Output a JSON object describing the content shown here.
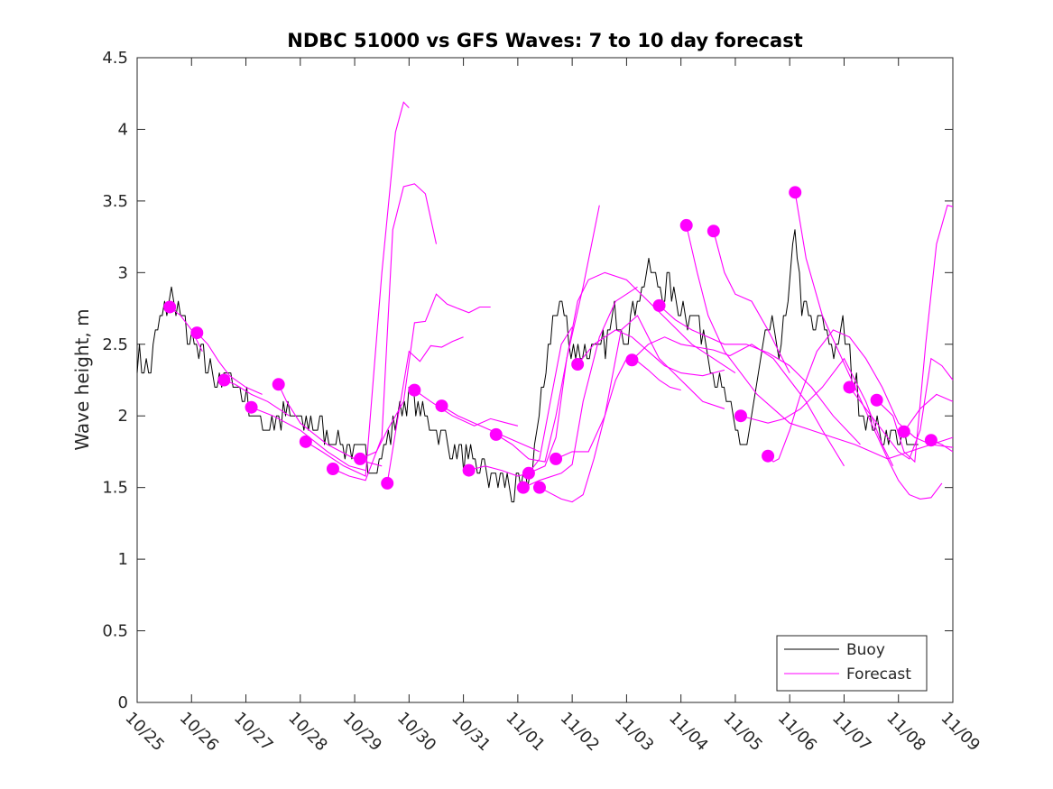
{
  "chart_data": {
    "type": "line",
    "title": "NDBC 51000 vs GFS Waves: 7 to 10 day forecast",
    "xlabel": "",
    "ylabel": "Wave height, m",
    "xlim": [
      0,
      15
    ],
    "ylim": [
      0,
      4.5
    ],
    "x_unit": "days since 10/25",
    "y_ticks": [
      "0",
      "0.5",
      "1",
      "1.5",
      "2",
      "2.5",
      "3",
      "3.5",
      "4",
      "4.5"
    ],
    "y_tick_values": [
      0,
      0.5,
      1,
      1.5,
      2,
      2.5,
      3,
      3.5,
      4,
      4.5
    ],
    "x_ticks": [
      "10/25",
      "10/26",
      "10/27",
      "10/28",
      "10/29",
      "10/30",
      "10/31",
      "11/01",
      "11/02",
      "11/03",
      "11/04",
      "11/05",
      "11/06",
      "11/07",
      "11/08",
      "11/09"
    ],
    "x_tick_values": [
      0,
      1,
      2,
      3,
      4,
      5,
      6,
      7,
      8,
      9,
      10,
      11,
      12,
      13,
      14,
      15
    ],
    "legend": {
      "location": "bottom-right",
      "entries": [
        "Buoy",
        "Forecast"
      ]
    },
    "colors": {
      "buoy": "#000000",
      "forecast": "#ff00ff",
      "axis": "#262626"
    },
    "buoy": {
      "name": "Buoy",
      "anchors": {
        "x": [
          0,
          0.2,
          0.4,
          0.6,
          0.8,
          1.0,
          1.2,
          1.4,
          1.6,
          1.8,
          2.0,
          2.2,
          2.4,
          2.6,
          2.8,
          3.0,
          3.2,
          3.4,
          3.6,
          3.8,
          4.0,
          4.2,
          4.4,
          4.6,
          4.8,
          5.0,
          5.2,
          5.4,
          5.6,
          5.8,
          6.0,
          6.2,
          6.4,
          6.6,
          6.8,
          7.0,
          7.2,
          7.4,
          7.6,
          7.8,
          8.0,
          8.2,
          8.4,
          8.6,
          8.8,
          9.0,
          9.2,
          9.4,
          9.6,
          9.8,
          10.0,
          10.2,
          10.4,
          10.6,
          10.8,
          11.0,
          11.2,
          11.4,
          11.6,
          11.8,
          12.0,
          12.1,
          12.2,
          12.4,
          12.6,
          12.8,
          13.0,
          13.2,
          13.4,
          13.6,
          13.8,
          14.0,
          14.2,
          14.4
        ],
        "y": [
          2.4,
          2.3,
          2.6,
          2.85,
          2.7,
          2.5,
          2.4,
          2.3,
          2.25,
          2.25,
          2.1,
          1.95,
          1.95,
          2.0,
          2.0,
          1.95,
          1.95,
          1.9,
          1.85,
          1.8,
          1.75,
          1.7,
          1.65,
          1.8,
          2.0,
          2.15,
          2.05,
          1.95,
          1.85,
          1.75,
          1.7,
          1.65,
          1.6,
          1.55,
          1.55,
          1.45,
          1.55,
          2.0,
          2.6,
          2.8,
          2.45,
          2.5,
          2.4,
          2.5,
          2.7,
          2.6,
          2.85,
          3.0,
          2.9,
          2.9,
          2.75,
          2.7,
          2.6,
          2.3,
          2.1,
          1.9,
          1.75,
          2.2,
          2.6,
          2.5,
          2.8,
          3.35,
          2.8,
          2.6,
          2.65,
          2.5,
          2.6,
          2.2,
          2.0,
          1.9,
          1.85,
          1.85,
          1.75,
          1.75
        ]
      },
      "noise_amplitude_m": 0.1,
      "time_step_days": 0.042
    },
    "forecasts": [
      {
        "x": [
          0.6,
          0.8,
          1.0,
          1.2
        ],
        "y": [
          2.76,
          2.7,
          2.6,
          2.45
        ]
      },
      {
        "x": [
          1.1,
          1.3,
          1.5,
          1.7,
          2.0,
          2.3
        ],
        "y": [
          2.58,
          2.5,
          2.38,
          2.28,
          2.2,
          2.15
        ]
      },
      {
        "x": [
          1.6,
          1.8,
          2.1,
          2.4,
          2.8
        ],
        "y": [
          2.25,
          2.22,
          2.15,
          2.1,
          2.0
        ]
      },
      {
        "x": [
          2.1,
          2.5,
          3.0,
          3.5,
          3.9,
          4.2
        ],
        "y": [
          2.06,
          2.0,
          1.9,
          1.75,
          1.65,
          1.62
        ]
      },
      {
        "x": [
          2.6,
          2.75,
          3.0,
          3.5,
          4.0,
          4.5
        ],
        "y": [
          2.22,
          2.1,
          1.95,
          1.8,
          1.7,
          1.65
        ]
      },
      {
        "x": [
          3.1,
          3.4,
          3.8,
          4.2,
          4.5,
          4.75,
          4.9,
          5.0
        ],
        "y": [
          1.82,
          1.75,
          1.65,
          1.58,
          3.0,
          3.98,
          4.19,
          4.15
        ]
      },
      {
        "x": [
          3.6,
          3.9,
          4.2,
          4.5,
          4.7,
          4.9,
          5.1,
          5.3,
          5.5
        ],
        "y": [
          1.63,
          1.58,
          1.55,
          1.85,
          3.3,
          3.6,
          3.62,
          3.55,
          3.2
        ]
      },
      {
        "x": [
          4.1,
          4.4,
          4.6,
          4.9,
          5.1,
          5.3,
          5.5,
          5.7,
          5.9,
          6.1,
          6.3,
          6.5
        ],
        "y": [
          1.7,
          1.75,
          1.9,
          2.1,
          2.65,
          2.66,
          2.85,
          2.78,
          2.75,
          2.72,
          2.76,
          2.76
        ]
      },
      {
        "x": [
          4.6,
          4.8,
          5.0,
          5.2,
          5.4,
          5.6,
          5.8,
          6.0
        ],
        "y": [
          1.53,
          2.0,
          2.45,
          2.38,
          2.49,
          2.48,
          2.52,
          2.55
        ]
      },
      {
        "x": [
          5.1,
          5.4,
          5.8,
          6.2,
          6.5,
          6.8,
          7.0
        ],
        "y": [
          2.18,
          2.1,
          2.0,
          1.93,
          1.98,
          1.95,
          1.93
        ]
      },
      {
        "x": [
          5.6,
          5.9,
          6.2,
          6.5,
          6.8,
          7.1,
          7.4
        ],
        "y": [
          2.07,
          2.0,
          1.95,
          1.9,
          1.85,
          1.8,
          1.75
        ]
      },
      {
        "x": [
          6.1,
          6.4,
          6.7,
          7.0,
          7.2,
          7.4,
          7.6,
          7.8,
          8.0
        ],
        "y": [
          1.62,
          1.65,
          1.62,
          1.58,
          1.6,
          1.7,
          2.1,
          2.5,
          2.62
        ]
      },
      {
        "x": [
          6.6,
          6.9,
          7.2,
          7.5,
          7.7,
          7.9,
          8.2,
          8.5
        ],
        "y": [
          1.87,
          1.8,
          1.7,
          1.68,
          2.0,
          2.4,
          2.9,
          3.47
        ]
      },
      {
        "x": [
          7.1,
          7.4,
          7.8,
          8.0,
          8.2,
          8.5,
          8.8,
          9.0,
          9.2
        ],
        "y": [
          1.5,
          1.55,
          1.6,
          1.66,
          2.1,
          2.55,
          2.8,
          2.85,
          2.9
        ]
      },
      {
        "x": [
          7.2,
          7.5,
          7.7,
          7.9,
          8.1,
          8.3,
          8.6,
          9.0,
          9.4,
          9.8,
          10.2,
          10.6,
          11.0
        ],
        "y": [
          1.6,
          1.65,
          1.85,
          2.4,
          2.8,
          2.95,
          3.0,
          2.95,
          2.8,
          2.65,
          2.5,
          2.4,
          2.3
        ]
      },
      {
        "x": [
          7.7,
          8.0,
          8.3,
          8.6,
          8.9,
          9.2,
          9.4,
          9.6,
          10.0,
          10.4,
          10.8
        ],
        "y": [
          1.7,
          1.75,
          1.75,
          2.0,
          2.6,
          2.7,
          2.55,
          2.4,
          2.25,
          2.1,
          2.05
        ]
      },
      {
        "x": [
          8.1,
          8.4,
          8.8,
          9.1,
          9.4,
          9.7,
          10.0,
          10.4,
          10.8
        ],
        "y": [
          2.36,
          2.5,
          2.6,
          2.55,
          2.45,
          2.35,
          2.3,
          2.28,
          2.32
        ]
      },
      {
        "x": [
          7.4,
          7.8,
          8.0,
          8.2,
          8.4,
          8.6,
          8.8,
          9.0,
          9.2,
          9.4,
          9.6,
          9.8,
          10.0
        ],
        "y": [
          1.5,
          1.42,
          1.4,
          1.45,
          1.7,
          2.0,
          2.25,
          2.4,
          2.38,
          2.32,
          2.25,
          2.2,
          2.18
        ]
      },
      {
        "x": [
          9.1,
          9.4,
          9.7,
          10.0,
          10.3,
          10.6,
          10.9,
          11.3,
          11.7,
          12.0,
          12.3,
          12.6,
          13.0
        ],
        "y": [
          2.39,
          2.5,
          2.55,
          2.5,
          2.48,
          2.46,
          2.42,
          2.5,
          2.4,
          2.25,
          2.1,
          1.9,
          1.65
        ]
      },
      {
        "x": [
          9.6,
          9.9,
          10.2,
          10.5,
          10.8,
          11.2,
          11.6,
          12.0,
          12.4,
          12.8,
          13.3
        ],
        "y": [
          2.77,
          2.67,
          2.6,
          2.55,
          2.5,
          2.5,
          2.44,
          2.35,
          2.2,
          2.0,
          1.8
        ]
      },
      {
        "x": [
          10.1,
          10.3,
          10.5,
          10.8,
          11.1,
          11.4,
          11.7,
          12.0,
          12.4,
          12.8,
          13.2,
          13.5,
          13.8,
          14.2,
          14.6,
          15.0
        ],
        "y": [
          3.33,
          3.0,
          2.7,
          2.45,
          2.3,
          2.15,
          2.05,
          1.95,
          1.9,
          1.85,
          1.8,
          1.75,
          1.7,
          1.75,
          1.8,
          1.85
        ]
      },
      {
        "x": [
          10.6,
          10.8,
          11.0,
          11.3,
          11.6,
          11.8,
          12.0
        ],
        "y": [
          3.29,
          3.0,
          2.85,
          2.8,
          2.6,
          2.45,
          2.3
        ]
      },
      {
        "x": [
          11.1,
          11.3,
          11.6,
          11.9,
          12.2,
          12.6,
          13.0,
          13.4,
          13.7,
          13.9
        ],
        "y": [
          2.0,
          1.98,
          1.95,
          1.98,
          2.05,
          2.2,
          2.4,
          2.1,
          1.8,
          1.65
        ]
      },
      {
        "x": [
          11.6,
          11.7,
          11.8,
          12.0,
          12.2,
          12.5,
          12.8,
          13.1,
          13.4,
          13.7,
          14.0,
          14.3,
          14.6,
          15.0
        ],
        "y": [
          1.72,
          1.68,
          1.7,
          1.9,
          2.15,
          2.45,
          2.6,
          2.55,
          2.4,
          2.2,
          1.95,
          1.85,
          1.8,
          1.78
        ]
      },
      {
        "x": [
          12.1,
          12.3,
          12.6,
          12.9,
          13.2,
          13.5,
          13.8,
          14.0,
          14.2,
          14.4,
          14.6,
          14.8
        ],
        "y": [
          3.56,
          3.1,
          2.7,
          2.45,
          2.2,
          1.95,
          1.7,
          1.55,
          1.45,
          1.42,
          1.43,
          1.53
        ]
      },
      {
        "x": [
          13.1,
          13.4,
          13.7,
          14.0,
          14.2,
          14.4,
          14.6,
          14.8,
          15.0
        ],
        "y": [
          2.2,
          2.05,
          1.9,
          1.75,
          1.7,
          1.9,
          2.4,
          2.35,
          2.25
        ]
      },
      {
        "x": [
          13.6,
          13.9,
          14.1,
          14.3,
          14.5,
          14.7,
          14.9,
          15.0
        ],
        "y": [
          2.11,
          2.0,
          1.75,
          1.68,
          2.5,
          3.2,
          3.47,
          3.46
        ]
      },
      {
        "x": [
          14.1,
          14.4,
          14.7,
          15.0
        ],
        "y": [
          1.89,
          2.05,
          2.15,
          2.1
        ]
      },
      {
        "x": [
          14.6,
          14.8,
          15.0
        ],
        "y": [
          1.83,
          1.8,
          1.75
        ]
      }
    ]
  }
}
